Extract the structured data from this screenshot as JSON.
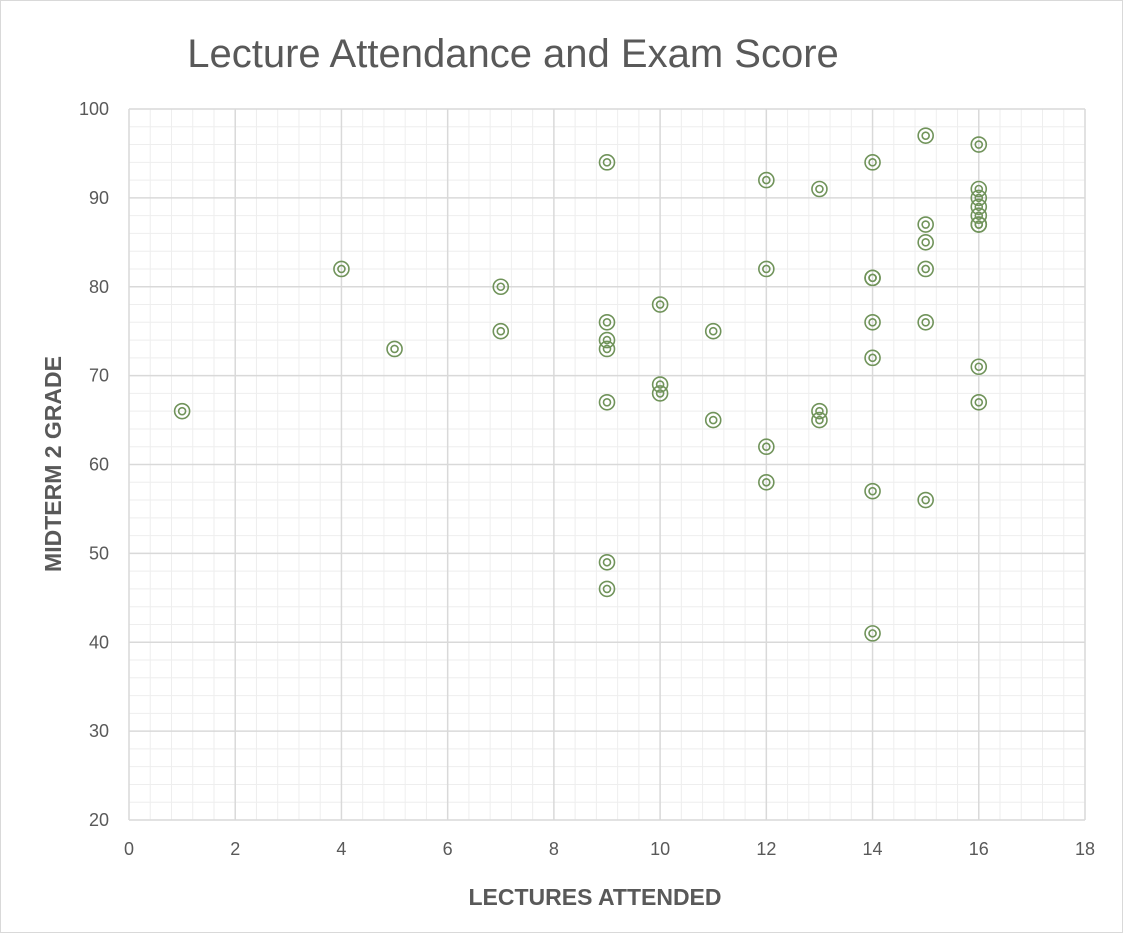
{
  "chart_data": {
    "type": "scatter",
    "title": "Lecture Attendance and Exam Score",
    "xlabel": "LECTURES ATTENDED",
    "ylabel": "MIDTERM 2 GRADE",
    "xlim": [
      0,
      18
    ],
    "ylim": [
      20,
      100
    ],
    "x_ticks": [
      "0",
      "2",
      "4",
      "6",
      "8",
      "10",
      "12",
      "14",
      "16",
      "18"
    ],
    "y_ticks": [
      "20",
      "30",
      "40",
      "50",
      "60",
      "70",
      "80",
      "90",
      "100"
    ],
    "grid": "major and minor",
    "legend": "none",
    "marker_color": "#70935a",
    "points": [
      [
        1,
        66
      ],
      [
        4,
        82
      ],
      [
        5,
        73
      ],
      [
        7,
        80
      ],
      [
        7,
        75
      ],
      [
        9,
        94
      ],
      [
        9,
        76
      ],
      [
        9,
        74
      ],
      [
        9,
        73
      ],
      [
        9,
        67
      ],
      [
        9,
        49
      ],
      [
        9,
        46
      ],
      [
        10,
        78
      ],
      [
        10,
        69
      ],
      [
        10,
        68
      ],
      [
        11,
        75
      ],
      [
        11,
        65
      ],
      [
        12,
        92
      ],
      [
        12,
        82
      ],
      [
        12,
        62
      ],
      [
        12,
        58
      ],
      [
        13,
        91
      ],
      [
        13,
        66
      ],
      [
        13,
        65
      ],
      [
        14,
        94
      ],
      [
        14,
        81
      ],
      [
        14,
        81
      ],
      [
        14,
        76
      ],
      [
        14,
        72
      ],
      [
        14,
        57
      ],
      [
        14,
        41
      ],
      [
        15,
        97
      ],
      [
        15,
        87
      ],
      [
        15,
        85
      ],
      [
        15,
        82
      ],
      [
        15,
        76
      ],
      [
        15,
        56
      ],
      [
        16,
        96
      ],
      [
        16,
        91
      ],
      [
        16,
        90
      ],
      [
        16,
        89
      ],
      [
        16,
        88
      ],
      [
        16,
        87
      ],
      [
        16,
        87
      ],
      [
        16,
        71
      ],
      [
        16,
        67
      ]
    ]
  }
}
